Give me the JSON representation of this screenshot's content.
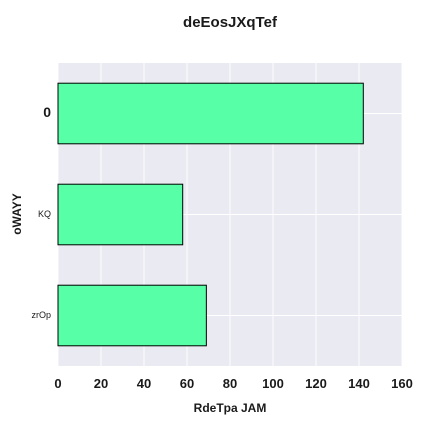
{
  "chart_data": {
    "type": "bar",
    "orientation": "horizontal",
    "title": "deEosJXqTef",
    "xlabel": "RdeTpa JAM",
    "ylabel": "oWAYY",
    "categories": [
      "0",
      "KQ",
      "zrOp"
    ],
    "values": [
      142,
      58,
      69
    ],
    "xlim": [
      0,
      160
    ],
    "xticks": [
      0,
      20,
      40,
      60,
      80,
      100,
      120,
      140,
      160
    ],
    "grid": true,
    "bar_color": "#57ffa6",
    "bar_edge_color": "#000000",
    "background_color": "#eaeaf2"
  }
}
